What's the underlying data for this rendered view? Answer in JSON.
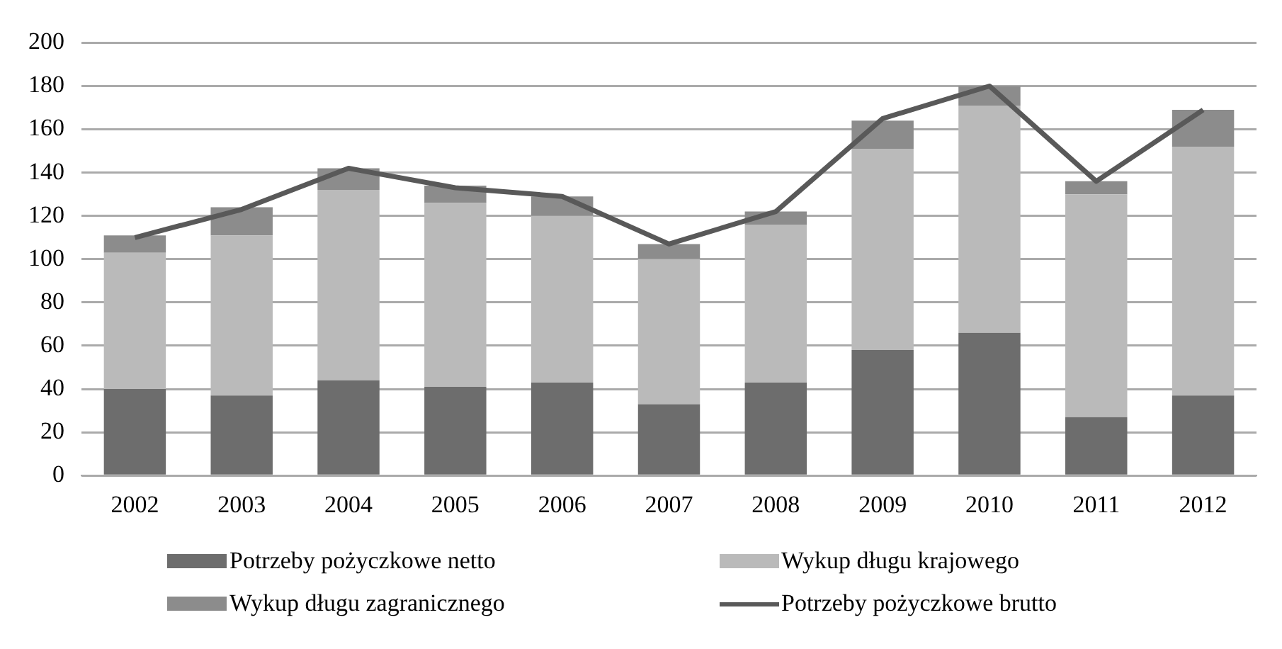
{
  "chart_data": {
    "type": "bar",
    "stacked": true,
    "categories": [
      "2002",
      "2003",
      "2004",
      "2005",
      "2006",
      "2007",
      "2008",
      "2009",
      "2010",
      "2011",
      "2012"
    ],
    "series": [
      {
        "name": "Potrzeby pożyczkowe netto",
        "color": "#6d6d6d",
        "values": [
          40,
          37,
          44,
          41,
          43,
          33,
          43,
          58,
          66,
          27,
          37
        ]
      },
      {
        "name": "Wykup  długu krajowego",
        "color": "#bababa",
        "values": [
          63,
          74,
          88,
          85,
          77,
          67,
          73,
          93,
          105,
          103,
          115
        ]
      },
      {
        "name": "Wykup  długu zagranicznego",
        "color": "#8c8c8c",
        "values": [
          8,
          13,
          10,
          8,
          9,
          7,
          6,
          13,
          9,
          6,
          17
        ]
      },
      {
        "name": "Potrzeby pożyczkowe brutto",
        "type": "line",
        "color": "#595959",
        "values": [
          110,
          123,
          142,
          133,
          129,
          107,
          122,
          165,
          180,
          136,
          169
        ]
      }
    ],
    "ylim": [
      0,
      200
    ],
    "yticks": [
      0,
      20,
      40,
      60,
      80,
      100,
      120,
      140,
      160,
      180,
      200
    ],
    "grid": "y",
    "legend": "bottom"
  }
}
